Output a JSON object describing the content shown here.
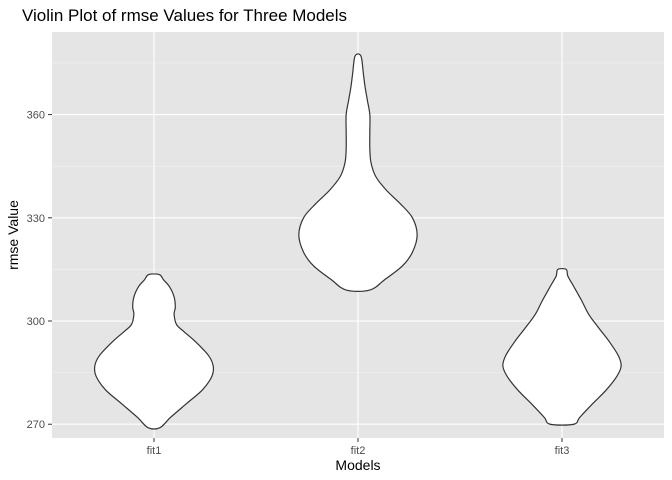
{
  "chart_data": {
    "type": "violin",
    "title": "Violin Plot of rmse Values for Three Models",
    "xlabel": "Models",
    "ylabel": "rmse Value",
    "categories": [
      "fit1",
      "fit2",
      "fit3"
    ],
    "ylim": [
      266,
      384
    ],
    "yticks": [
      270,
      300,
      330,
      360
    ],
    "grid": true,
    "legend": "none",
    "colors": {
      "panel_background": "#e5e5e5",
      "grid_major": "#ffffff",
      "grid_minor": "#f2f2f2",
      "violin_fill": "#ffffff",
      "violin_outline": "#333333"
    },
    "violins": [
      {
        "category": "fit1",
        "y_min": 269,
        "y_max": 313.5,
        "density_profile": [
          {
            "y": 269.0,
            "w": 0.1
          },
          {
            "y": 272.0,
            "w": 0.28
          },
          {
            "y": 276.0,
            "w": 0.55
          },
          {
            "y": 280.0,
            "w": 0.82
          },
          {
            "y": 284.0,
            "w": 0.98
          },
          {
            "y": 287.0,
            "w": 1.0
          },
          {
            "y": 290.0,
            "w": 0.92
          },
          {
            "y": 294.0,
            "w": 0.7
          },
          {
            "y": 297.0,
            "w": 0.5
          },
          {
            "y": 299.0,
            "w": 0.38
          },
          {
            "y": 302.0,
            "w": 0.34
          },
          {
            "y": 304.0,
            "w": 0.36
          },
          {
            "y": 307.0,
            "w": 0.34
          },
          {
            "y": 310.0,
            "w": 0.26
          },
          {
            "y": 312.0,
            "w": 0.16
          },
          {
            "y": 313.5,
            "w": 0.09
          }
        ]
      },
      {
        "category": "fit2",
        "y_min": 309,
        "y_max": 377,
        "density_profile": [
          {
            "y": 309.0,
            "w": 0.2
          },
          {
            "y": 312.0,
            "w": 0.45
          },
          {
            "y": 316.0,
            "w": 0.75
          },
          {
            "y": 320.0,
            "w": 0.92
          },
          {
            "y": 325.0,
            "w": 1.0
          },
          {
            "y": 330.0,
            "w": 0.92
          },
          {
            "y": 334.0,
            "w": 0.72
          },
          {
            "y": 338.0,
            "w": 0.48
          },
          {
            "y": 342.0,
            "w": 0.3
          },
          {
            "y": 346.0,
            "w": 0.22
          },
          {
            "y": 350.0,
            "w": 0.2
          },
          {
            "y": 355.0,
            "w": 0.2
          },
          {
            "y": 360.0,
            "w": 0.2
          },
          {
            "y": 364.0,
            "w": 0.16
          },
          {
            "y": 368.0,
            "w": 0.12
          },
          {
            "y": 372.0,
            "w": 0.09
          },
          {
            "y": 377.0,
            "w": 0.05
          }
        ]
      },
      {
        "category": "fit3",
        "y_min": 270,
        "y_max": 315,
        "density_profile": [
          {
            "y": 270.0,
            "w": 0.2
          },
          {
            "y": 272.0,
            "w": 0.3
          },
          {
            "y": 276.0,
            "w": 0.52
          },
          {
            "y": 280.0,
            "w": 0.75
          },
          {
            "y": 284.0,
            "w": 0.93
          },
          {
            "y": 287.0,
            "w": 1.0
          },
          {
            "y": 290.0,
            "w": 0.95
          },
          {
            "y": 294.0,
            "w": 0.8
          },
          {
            "y": 298.0,
            "w": 0.62
          },
          {
            "y": 302.0,
            "w": 0.45
          },
          {
            "y": 306.0,
            "w": 0.33
          },
          {
            "y": 310.0,
            "w": 0.2
          },
          {
            "y": 313.0,
            "w": 0.1
          },
          {
            "y": 315.0,
            "w": 0.07
          }
        ]
      }
    ]
  }
}
